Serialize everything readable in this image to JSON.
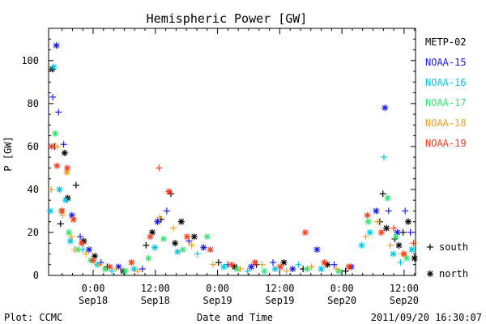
{
  "footer": {
    "credit": "Plot: CCMC",
    "timestamp": "2011/09/20 16:30:07"
  },
  "chart_data": {
    "type": "scatter",
    "title": "Hemispheric Power [GW]",
    "xlabel": "Date and Time",
    "ylabel": "P [GW]",
    "ylim": [
      0,
      115
    ],
    "y_ticks": [
      0,
      20,
      40,
      60,
      80,
      100
    ],
    "xlim_hours": [
      -8.6,
      62.2
    ],
    "x_ticks": [
      {
        "hour": 0,
        "time": "0:00",
        "date": "Sep18"
      },
      {
        "hour": 12,
        "time": "12:00",
        "date": "Sep18"
      },
      {
        "hour": 24,
        "time": "0:00",
        "date": "Sep19"
      },
      {
        "hour": 36,
        "time": "12:00",
        "date": "Sep19"
      },
      {
        "hour": 48,
        "time": "0:00",
        "date": "Sep20"
      },
      {
        "hour": 60,
        "time": "12:00",
        "date": "Sep20"
      }
    ],
    "marker_legend": [
      {
        "symbol": "+",
        "label": "south"
      },
      {
        "symbol": "*",
        "label": "north"
      }
    ],
    "series": [
      {
        "name": "METP-02",
        "color": "#000000",
        "points": [
          {
            "x": -7.9,
            "y": 96,
            "m": "*"
          },
          {
            "x": -7.4,
            "y": 60,
            "m": "+"
          },
          {
            "x": -6.3,
            "y": 24,
            "m": "+"
          },
          {
            "x": -5.5,
            "y": 57,
            "m": "*"
          },
          {
            "x": -4.9,
            "y": 36,
            "m": "*"
          },
          {
            "x": -3.3,
            "y": 42,
            "m": "+"
          },
          {
            "x": -1.8,
            "y": 16,
            "m": "*"
          },
          {
            "x": 0.3,
            "y": 9,
            "m": "*"
          },
          {
            "x": 2.7,
            "y": 4,
            "m": "+"
          },
          {
            "x": 5.8,
            "y": 2,
            "m": "*"
          },
          {
            "x": 10.2,
            "y": 14,
            "m": "+"
          },
          {
            "x": 11.4,
            "y": 20,
            "m": "*"
          },
          {
            "x": 13.1,
            "y": 26,
            "m": "+"
          },
          {
            "x": 15.0,
            "y": 38,
            "m": "+"
          },
          {
            "x": 15.8,
            "y": 15,
            "m": "*"
          },
          {
            "x": 17.0,
            "y": 25,
            "m": "*"
          },
          {
            "x": 19.5,
            "y": 18,
            "m": "*"
          },
          {
            "x": 24.2,
            "y": 6,
            "m": "+"
          },
          {
            "x": 27.3,
            "y": 4,
            "m": "*"
          },
          {
            "x": 31.5,
            "y": 5,
            "m": "+"
          },
          {
            "x": 36.8,
            "y": 6,
            "m": "*"
          },
          {
            "x": 40.5,
            "y": 3,
            "m": "+"
          },
          {
            "x": 45.2,
            "y": 5,
            "m": "*"
          },
          {
            "x": 48.7,
            "y": 2,
            "m": "+"
          },
          {
            "x": 55.3,
            "y": 25,
            "m": "+"
          },
          {
            "x": 55.9,
            "y": 38,
            "m": "+"
          },
          {
            "x": 56.6,
            "y": 22,
            "m": "*"
          },
          {
            "x": 58.2,
            "y": 17,
            "m": "+"
          },
          {
            "x": 59.0,
            "y": 14,
            "m": "*"
          },
          {
            "x": 59.8,
            "y": 20,
            "m": "+"
          },
          {
            "x": 60.8,
            "y": 25,
            "m": "*"
          },
          {
            "x": 62.0,
            "y": 8,
            "m": "*"
          }
        ]
      },
      {
        "name": "NOAA-15",
        "color": "#1a1aff",
        "points": [
          {
            "x": -7.8,
            "y": 83,
            "m": "+"
          },
          {
            "x": -7.1,
            "y": 107,
            "m": "*"
          },
          {
            "x": -6.7,
            "y": 76,
            "m": "+"
          },
          {
            "x": -5.7,
            "y": 61,
            "m": "+"
          },
          {
            "x": -4.1,
            "y": 28,
            "m": "*"
          },
          {
            "x": -2.5,
            "y": 18,
            "m": "+"
          },
          {
            "x": -0.8,
            "y": 12,
            "m": "*"
          },
          {
            "x": 1.5,
            "y": 6,
            "m": "+"
          },
          {
            "x": 4.9,
            "y": 4,
            "m": "*"
          },
          {
            "x": 9.5,
            "y": 3,
            "m": "+"
          },
          {
            "x": 12.4,
            "y": 25,
            "m": "*"
          },
          {
            "x": 14.2,
            "y": 30,
            "m": "+"
          },
          {
            "x": 18.5,
            "y": 16,
            "m": "+"
          },
          {
            "x": 21.3,
            "y": 13,
            "m": "*"
          },
          {
            "x": 26.0,
            "y": 5,
            "m": "+"
          },
          {
            "x": 30.5,
            "y": 4,
            "m": "*"
          },
          {
            "x": 34.7,
            "y": 6,
            "m": "+"
          },
          {
            "x": 38.5,
            "y": 3,
            "m": "*"
          },
          {
            "x": 43.2,
            "y": 12,
            "m": "*"
          },
          {
            "x": 46.5,
            "y": 5,
            "m": "+"
          },
          {
            "x": 49.8,
            "y": 4,
            "m": "*"
          },
          {
            "x": 54.6,
            "y": 30,
            "m": "*"
          },
          {
            "x": 56.3,
            "y": 78,
            "m": "*"
          },
          {
            "x": 57.0,
            "y": 30,
            "m": "+"
          },
          {
            "x": 58.7,
            "y": 20,
            "m": "*"
          },
          {
            "x": 60.2,
            "y": 30,
            "m": "+"
          },
          {
            "x": 61.2,
            "y": 20,
            "m": "+"
          }
        ]
      },
      {
        "name": "NOAA-16",
        "color": "#00c8e6",
        "points": [
          {
            "x": -8.3,
            "y": 30,
            "m": "*"
          },
          {
            "x": -7.6,
            "y": 97,
            "m": "*"
          },
          {
            "x": -6.5,
            "y": 40,
            "m": "*"
          },
          {
            "x": -5.3,
            "y": 35,
            "m": "*"
          },
          {
            "x": -4.4,
            "y": 16,
            "m": "*"
          },
          {
            "x": -2.0,
            "y": 12,
            "m": "+"
          },
          {
            "x": 0.8,
            "y": 5,
            "m": "*"
          },
          {
            "x": 3.6,
            "y": 2,
            "m": "+"
          },
          {
            "x": 7.9,
            "y": 3,
            "m": "*"
          },
          {
            "x": 11.9,
            "y": 13,
            "m": "*"
          },
          {
            "x": 16.3,
            "y": 11,
            "m": "*"
          },
          {
            "x": 20.1,
            "y": 10,
            "m": "+"
          },
          {
            "x": 25.2,
            "y": 4,
            "m": "*"
          },
          {
            "x": 29.8,
            "y": 2,
            "m": "+"
          },
          {
            "x": 35.1,
            "y": 3,
            "m": "*"
          },
          {
            "x": 39.6,
            "y": 5,
            "m": "+"
          },
          {
            "x": 44.0,
            "y": 3,
            "m": "*"
          },
          {
            "x": 51.8,
            "y": 14,
            "m": "*"
          },
          {
            "x": 53.4,
            "y": 20,
            "m": "*"
          },
          {
            "x": 56.1,
            "y": 55,
            "m": "+"
          },
          {
            "x": 57.9,
            "y": 10,
            "m": "*"
          },
          {
            "x": 59.3,
            "y": 6,
            "m": "+"
          },
          {
            "x": 61.5,
            "y": 12,
            "m": "*"
          }
        ]
      },
      {
        "name": "NOAA-17",
        "color": "#33e673",
        "points": [
          {
            "x": -7.3,
            "y": 66,
            "m": "*"
          },
          {
            "x": -6.1,
            "y": 30,
            "m": "*"
          },
          {
            "x": -4.7,
            "y": 20,
            "m": "*"
          },
          {
            "x": -3.0,
            "y": 12,
            "m": "*"
          },
          {
            "x": -0.5,
            "y": 7,
            "m": "*"
          },
          {
            "x": 2.3,
            "y": 3,
            "m": "*"
          },
          {
            "x": 6.2,
            "y": 2,
            "m": "*"
          },
          {
            "x": 10.7,
            "y": 8,
            "m": "*"
          },
          {
            "x": 13.6,
            "y": 17,
            "m": "*"
          },
          {
            "x": 17.3,
            "y": 12,
            "m": "*"
          },
          {
            "x": 22.0,
            "y": 18,
            "m": "*"
          },
          {
            "x": 27.8,
            "y": 3,
            "m": "*"
          },
          {
            "x": 33.0,
            "y": 2,
            "m": "*"
          },
          {
            "x": 41.3,
            "y": 3,
            "m": "*"
          },
          {
            "x": 47.4,
            "y": 2,
            "m": "*"
          },
          {
            "x": 53.1,
            "y": 25,
            "m": "*"
          },
          {
            "x": 56.8,
            "y": 36,
            "m": "*"
          },
          {
            "x": 58.4,
            "y": 18,
            "m": "*"
          },
          {
            "x": 60.5,
            "y": 8,
            "m": "*"
          }
        ]
      },
      {
        "name": "NOAA-18",
        "color": "#f0a020",
        "points": [
          {
            "x": -8.1,
            "y": 40,
            "m": "+"
          },
          {
            "x": -6.9,
            "y": 60,
            "m": "+"
          },
          {
            "x": -5.9,
            "y": 28,
            "m": "+"
          },
          {
            "x": -5.1,
            "y": 48,
            "m": "*"
          },
          {
            "x": -4.2,
            "y": 18,
            "m": "+"
          },
          {
            "x": -3.6,
            "y": 12,
            "m": "+"
          },
          {
            "x": -1.4,
            "y": 10,
            "m": "+"
          },
          {
            "x": 1.2,
            "y": 5,
            "m": "+"
          },
          {
            "x": 4.4,
            "y": 3,
            "m": "+"
          },
          {
            "x": 8.6,
            "y": 2,
            "m": "+"
          },
          {
            "x": 12.8,
            "y": 27,
            "m": "+"
          },
          {
            "x": 15.5,
            "y": 22,
            "m": "+"
          },
          {
            "x": 19.0,
            "y": 14,
            "m": "+"
          },
          {
            "x": 23.1,
            "y": 5,
            "m": "+"
          },
          {
            "x": 28.4,
            "y": 3,
            "m": "+"
          },
          {
            "x": 32.6,
            "y": 5,
            "m": "+"
          },
          {
            "x": 37.3,
            "y": 2,
            "m": "+"
          },
          {
            "x": 42.1,
            "y": 4,
            "m": "+"
          },
          {
            "x": 46.9,
            "y": 3,
            "m": "+"
          },
          {
            "x": 52.6,
            "y": 18,
            "m": "+"
          },
          {
            "x": 54.9,
            "y": 25,
            "m": "+"
          },
          {
            "x": 57.3,
            "y": 14,
            "m": "+"
          },
          {
            "x": 59.6,
            "y": 10,
            "m": "+"
          }
        ]
      },
      {
        "name": "NOAA-19",
        "color": "#ff3b1a",
        "points": [
          {
            "x": -8.0,
            "y": 60,
            "m": "*"
          },
          {
            "x": -7.0,
            "y": 51,
            "m": "*"
          },
          {
            "x": -6.0,
            "y": 30,
            "m": "*"
          },
          {
            "x": -5.0,
            "y": 50,
            "m": "*"
          },
          {
            "x": -3.8,
            "y": 26,
            "m": "*"
          },
          {
            "x": -2.2,
            "y": 15,
            "m": "*"
          },
          {
            "x": 0.0,
            "y": 7,
            "m": "*"
          },
          {
            "x": 3.2,
            "y": 4,
            "m": "*"
          },
          {
            "x": 7.4,
            "y": 6,
            "m": "*"
          },
          {
            "x": 11.0,
            "y": 18,
            "m": "*"
          },
          {
            "x": 12.7,
            "y": 50,
            "m": "+"
          },
          {
            "x": 14.6,
            "y": 39,
            "m": "*"
          },
          {
            "x": 18.1,
            "y": 18,
            "m": "*"
          },
          {
            "x": 22.6,
            "y": 12,
            "m": "*"
          },
          {
            "x": 26.7,
            "y": 5,
            "m": "*"
          },
          {
            "x": 31.2,
            "y": 6,
            "m": "*"
          },
          {
            "x": 36.1,
            "y": 4,
            "m": "*"
          },
          {
            "x": 40.9,
            "y": 20,
            "m": "*"
          },
          {
            "x": 44.6,
            "y": 6,
            "m": "*"
          },
          {
            "x": 49.3,
            "y": 4,
            "m": "*"
          },
          {
            "x": 52.9,
            "y": 28,
            "m": "*"
          },
          {
            "x": 55.6,
            "y": 20,
            "m": "*"
          },
          {
            "x": 58.0,
            "y": 22,
            "m": "+"
          },
          {
            "x": 60.0,
            "y": 10,
            "m": "*"
          },
          {
            "x": 61.8,
            "y": 15,
            "m": "+"
          }
        ]
      }
    ]
  }
}
